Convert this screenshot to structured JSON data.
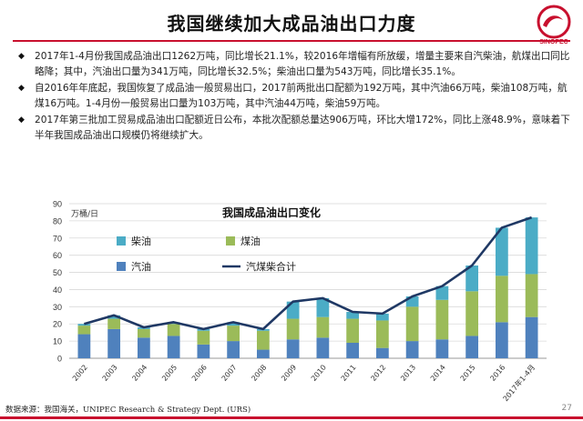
{
  "slide": {
    "title": "我国继续加大成品油出口力度",
    "page_number": "27",
    "source": "数据来源：我国海关，UNIPEC Research & Strategy Dept. (URS)",
    "bullets": [
      "2017年1-4月份我国成品油出口1262万吨，同比增长21.1%，较2016年增幅有所放缓，增量主要来自汽柴油，航煤出口同比略降；其中，汽油出口量为341万吨，同比增长32.5%；柴油出口量为543万吨，同比增长35.1%。",
      "自2016年年底起，我国恢复了成品油一般贸易出口，2017前两批出口配额为192万吨，其中汽油66万吨，柴油108万吨，航煤16万吨。1-4月份一般贸易出口量为103万吨，其中汽油44万吨，柴油59万吨。",
      "2017年第三批加工贸易成品油出口配额近日公布，本批次配额总量达906万吨，环比大增172%，同比上涨48.9%，意味着下半年我国成品油出口规模仍将继续扩大。"
    ],
    "logo_text": "SINOPEC",
    "colors": {
      "accent": "#c8102e",
      "diesel": "#4bacc6",
      "jet": "#9bbb59",
      "gasoline": "#4f81bd",
      "total": "#1f3864"
    }
  },
  "chart_data": {
    "type": "bar",
    "title": "我国成品油出口变化",
    "ylabel": "万桶/日",
    "ylim": [
      0,
      90
    ],
    "yticks": [
      0,
      10,
      20,
      30,
      40,
      50,
      60,
      70,
      80,
      90
    ],
    "categories": [
      "2002",
      "2003",
      "2004",
      "2005",
      "2006",
      "2007",
      "2008",
      "2009",
      "2010",
      "2011",
      "2012",
      "2013",
      "2014",
      "2015",
      "2016",
      "2017年1-4月"
    ],
    "stacked": true,
    "series": [
      {
        "name": "汽油",
        "values": [
          14,
          17,
          12,
          13,
          8,
          10,
          5,
          11,
          12,
          9,
          6,
          10,
          11,
          13,
          21,
          24
        ]
      },
      {
        "name": "煤油",
        "values": [
          5,
          6,
          5,
          7,
          8,
          9,
          11,
          12,
          12,
          14,
          16,
          20,
          23,
          26,
          27,
          25
        ]
      },
      {
        "name": "柴油",
        "values": [
          1,
          2,
          1,
          1,
          1,
          2,
          1,
          10,
          11,
          4,
          4,
          6,
          8,
          15,
          28,
          33
        ]
      },
      {
        "name": "汽煤柴合计",
        "type": "line",
        "values": [
          20,
          25,
          18,
          21,
          17,
          21,
          17,
          33,
          35,
          27,
          26,
          36,
          42,
          54,
          76,
          82
        ]
      }
    ],
    "legend": [
      {
        "name": "柴油",
        "shape": "box"
      },
      {
        "name": "煤油",
        "shape": "box"
      },
      {
        "name": "汽油",
        "shape": "box"
      },
      {
        "name": "汽煤柴合计",
        "shape": "line"
      }
    ]
  }
}
